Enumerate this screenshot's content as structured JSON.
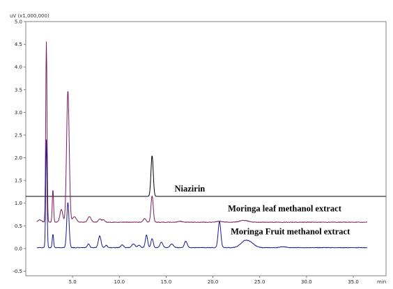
{
  "chart_data": {
    "type": "line",
    "y_unit_label": "uV (x1,000,000)",
    "x_unit_label": "min",
    "xlim": [
      0.0,
      38.5
    ],
    "ylim": [
      -0.6,
      5.0
    ],
    "x_ticks": [
      5.0,
      10.0,
      15.0,
      20.0,
      25.0,
      30.0,
      35.0
    ],
    "x_tick_labels": [
      "5.0",
      "10.0",
      "15.0",
      "20.0",
      "25.0",
      "30.0",
      "35.0"
    ],
    "y_ticks": [
      -0.5,
      0.0,
      0.5,
      1.0,
      1.5,
      2.0,
      2.5,
      3.0,
      3.5,
      4.0,
      4.5,
      5.0
    ],
    "y_tick_labels": [
      "-0.5",
      "0.0",
      "0.5",
      "1.0",
      "1.5",
      "2.0",
      "2.5",
      "3.0",
      "3.5",
      "4.0",
      "4.5",
      "5.0"
    ],
    "annotations": [
      {
        "text": "Niazirin",
        "x": 15.9,
        "y": 1.26
      },
      {
        "text": "Moringa leaf methanol extract",
        "x": 21.6,
        "y": 0.82
      },
      {
        "text": "Moringa Fruit methanol extract",
        "x": 21.9,
        "y": 0.31
      }
    ],
    "series": [
      {
        "name": "Niazirin",
        "color": "#000000",
        "baseline": 1.15,
        "x_range": [
          0.0,
          38.5
        ],
        "peaks": [
          [
            13.5,
            0.9,
            0.12
          ]
        ]
      },
      {
        "name": "Moringa leaf methanol extract",
        "color": "#7a1f5c",
        "baseline": 0.58,
        "x_range": [
          1.2,
          36.5
        ],
        "peaks": [
          [
            1.5,
            0.05,
            0.2
          ],
          [
            2.2,
            3.98,
            0.07
          ],
          [
            2.9,
            0.72,
            0.07
          ],
          [
            3.8,
            0.28,
            0.15
          ],
          [
            4.5,
            2.9,
            0.14
          ],
          [
            5.2,
            0.12,
            0.2
          ],
          [
            6.8,
            0.12,
            0.18
          ],
          [
            7.9,
            0.07,
            0.15
          ],
          [
            8.3,
            0.05,
            0.15
          ],
          [
            12.7,
            0.08,
            0.15
          ],
          [
            13.5,
            0.58,
            0.12
          ],
          [
            16.5,
            0.02,
            0.25
          ],
          [
            20.7,
            0.02,
            0.3
          ],
          [
            23.3,
            0.04,
            0.45
          ]
        ]
      },
      {
        "name": "Moringa Fruit methanol extract",
        "color": "#1a1a8c",
        "baseline": 0.02,
        "x_range": [
          1.2,
          36.5
        ],
        "peaks": [
          [
            2.2,
            2.38,
            0.07
          ],
          [
            2.9,
            0.3,
            0.07
          ],
          [
            4.5,
            1.0,
            0.12
          ],
          [
            6.7,
            0.08,
            0.12
          ],
          [
            7.9,
            0.26,
            0.14
          ],
          [
            8.6,
            0.05,
            0.12
          ],
          [
            10.3,
            0.06,
            0.15
          ],
          [
            11.5,
            0.08,
            0.18
          ],
          [
            12.1,
            0.05,
            0.15
          ],
          [
            12.9,
            0.28,
            0.12
          ],
          [
            13.5,
            0.2,
            0.12
          ],
          [
            14.5,
            0.12,
            0.15
          ],
          [
            15.6,
            0.08,
            0.18
          ],
          [
            17.1,
            0.14,
            0.15
          ],
          [
            20.7,
            0.58,
            0.14
          ],
          [
            23.4,
            0.14,
            0.45
          ],
          [
            24.1,
            0.08,
            0.4
          ],
          [
            27.5,
            0.02,
            0.3
          ]
        ]
      }
    ]
  }
}
